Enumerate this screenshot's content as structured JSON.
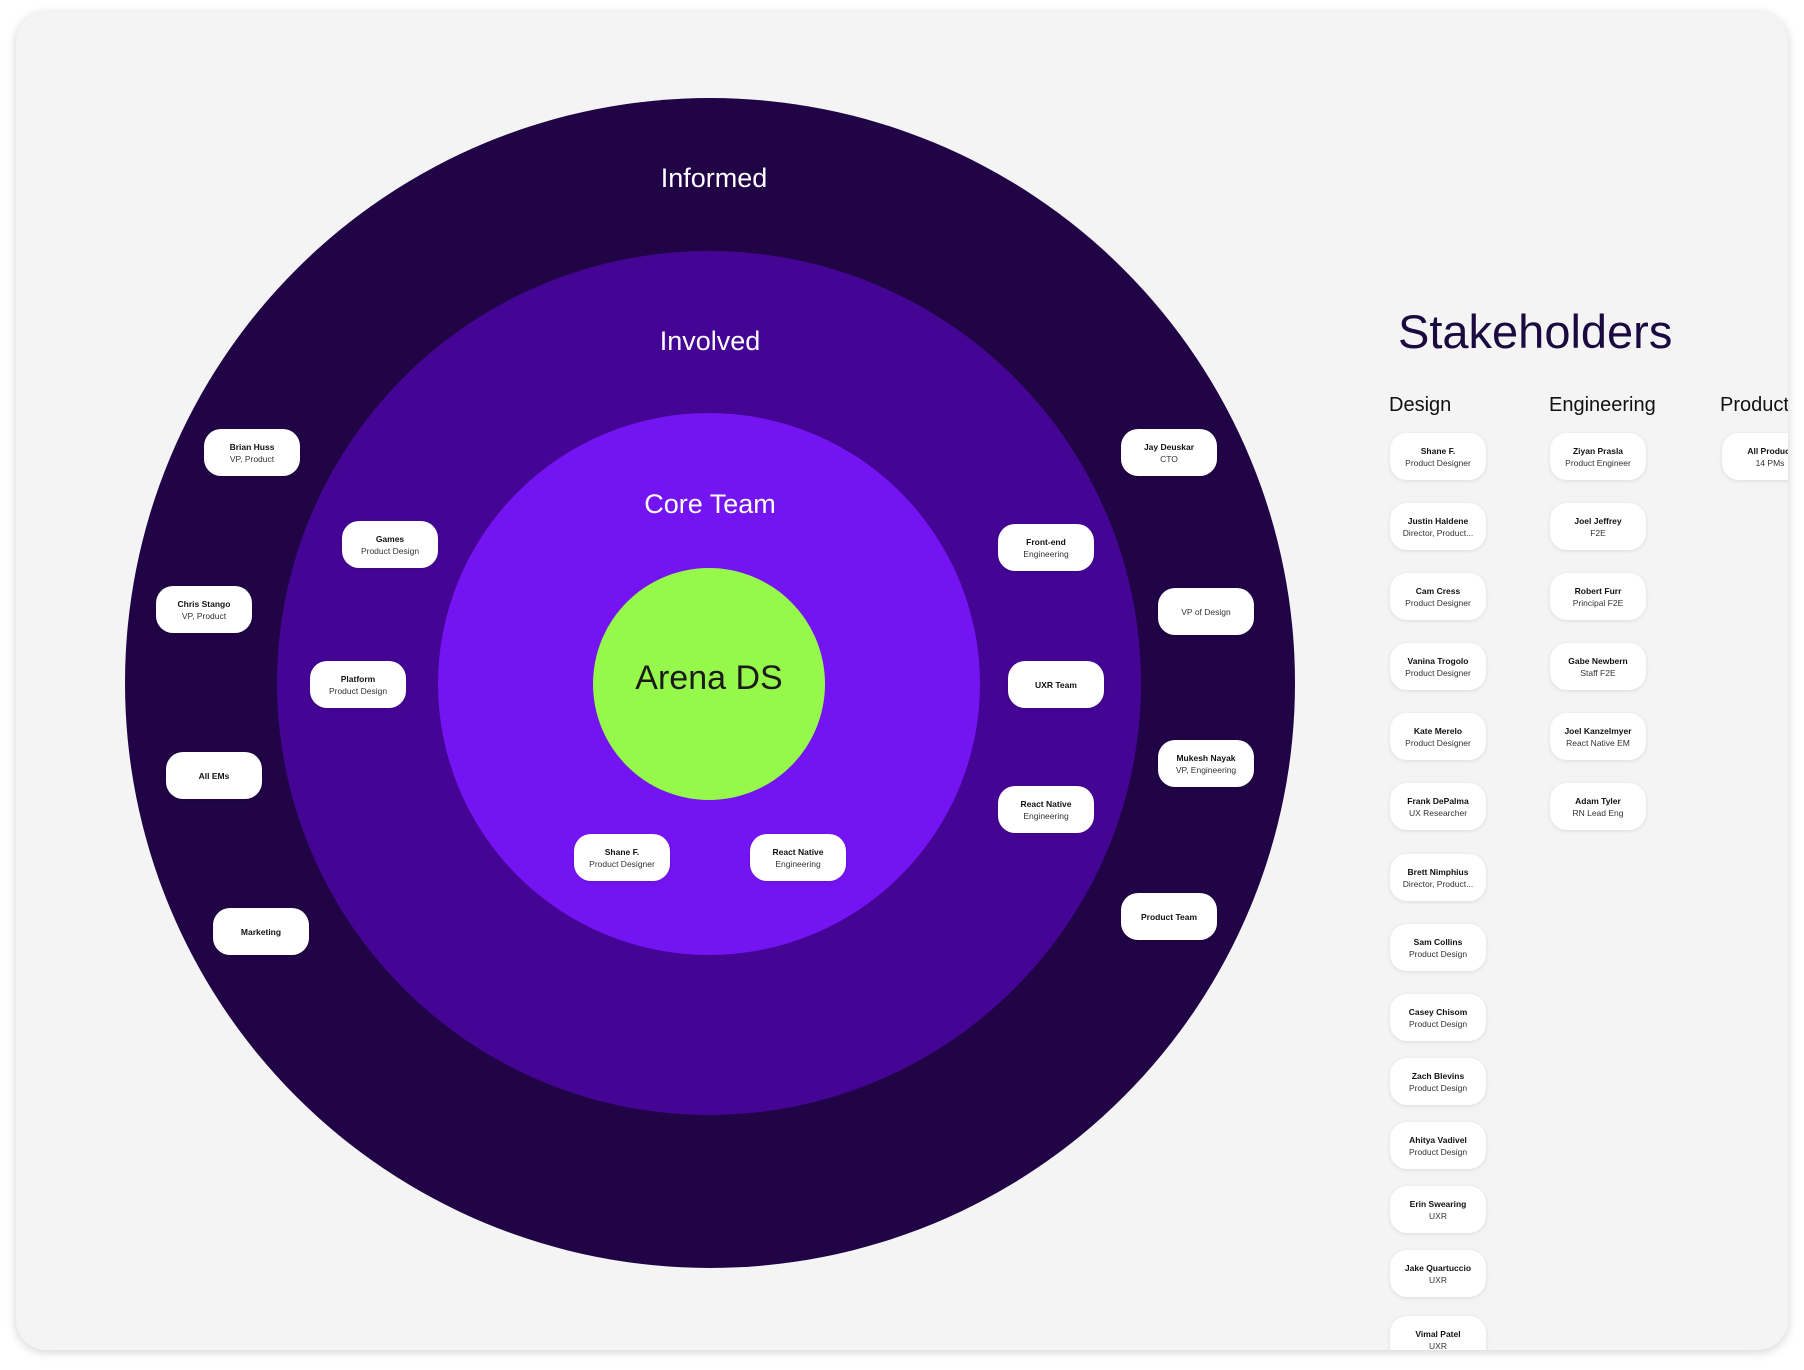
{
  "rings": {
    "informed": "Informed",
    "involved": "Involved",
    "core": "Core Team",
    "center": "Arena DS"
  },
  "chips": {
    "brian_huss": {
      "name": "Brian Huss",
      "role": "VP, Product"
    },
    "chris_stango": {
      "name": "Chris Stango",
      "role": "VP, Product"
    },
    "all_ems": {
      "name": "All EMs",
      "role": ""
    },
    "marketing": {
      "name": "Marketing",
      "role": ""
    },
    "jay_deuskar": {
      "name": "Jay Deuskar",
      "role": "CTO"
    },
    "vp_design": {
      "name": "VP of Design",
      "role": ""
    },
    "mukesh_nayak": {
      "name": "Mukesh Nayak",
      "role": "VP, Engineering"
    },
    "product_team": {
      "name": "Product Team",
      "role": ""
    },
    "games": {
      "name": "Games",
      "role": "Product Design"
    },
    "platform": {
      "name": "Platform",
      "role": "Product Design"
    },
    "front_end": {
      "name": "Front-end",
      "role": "Engineering"
    },
    "uxr_team": {
      "name": "UXR Team",
      "role": ""
    },
    "react_native_involved": {
      "name": "React Native",
      "role": "Engineering"
    },
    "shane_core": {
      "name": "Shane F.",
      "role": "Product Designer"
    },
    "react_native_core": {
      "name": "React Native",
      "role": "Engineering"
    }
  },
  "stakeholders": {
    "title": "Stakeholders",
    "columns": [
      {
        "heading": "Design",
        "people": [
          {
            "name": "Shane F.",
            "role": "Product Designer"
          },
          {
            "name": "Justin Haldene",
            "role": "Director, Product..."
          },
          {
            "name": "Cam Cress",
            "role": "Product Designer"
          },
          {
            "name": "Vanina Trogolo",
            "role": "Product Designer"
          },
          {
            "name": "Kate Merelo",
            "role": "Product Designer"
          },
          {
            "name": "Frank DePalma",
            "role": "UX Researcher"
          },
          {
            "name": "Brett Nimphius",
            "role": "Director, Product..."
          },
          {
            "name": "Sam Collins",
            "role": "Product Design"
          },
          {
            "name": "Casey Chisom",
            "role": "Product Design"
          },
          {
            "name": "Zach Blevins",
            "role": "Product Design"
          },
          {
            "name": "Ahitya Vadivel",
            "role": "Product Design"
          },
          {
            "name": "Erin Swearing",
            "role": "UXR"
          },
          {
            "name": "Jake Quartuccio",
            "role": "UXR"
          },
          {
            "name": "Vimal Patel",
            "role": "UXR"
          }
        ]
      },
      {
        "heading": "Engineering",
        "people": [
          {
            "name": "Ziyan Prasla",
            "role": "Product Engineer"
          },
          {
            "name": "Joel Jeffrey",
            "role": "F2E"
          },
          {
            "name": "Robert Furr",
            "role": "Principal F2E"
          },
          {
            "name": "Gabe Newbern",
            "role": "Staff F2E"
          },
          {
            "name": "Joel Kanzelmyer",
            "role": "React Native EM"
          },
          {
            "name": "Adam Tyler",
            "role": "RN Lead Eng"
          }
        ]
      },
      {
        "heading": "Product",
        "people": [
          {
            "name": "All Product",
            "role": "14 PMs"
          }
        ]
      }
    ]
  },
  "colors": {
    "informed": "#200446",
    "involved": "#440595",
    "core": "#7414f2",
    "center": "#96f84b",
    "background": "#f4f4f5"
  }
}
